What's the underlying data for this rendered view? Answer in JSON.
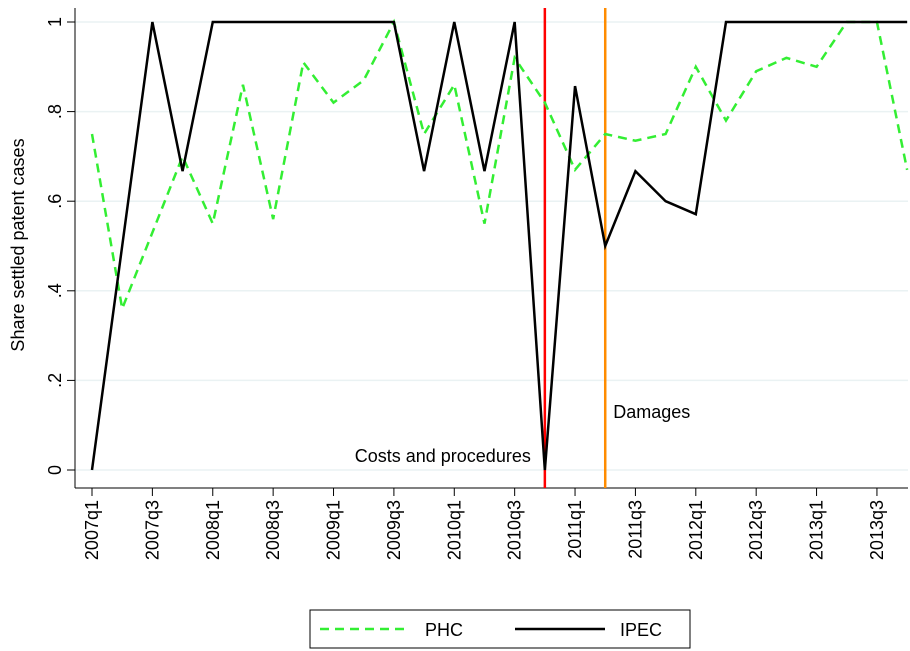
{
  "chart_data": {
    "type": "line",
    "y_label": "Share settled patent cases",
    "categories": [
      "2007q1",
      null,
      "2007q3",
      null,
      "2008q1",
      null,
      "2008q3",
      null,
      "2009q1",
      null,
      "2009q3",
      null,
      "2010q1",
      null,
      "2010q3",
      null,
      "2011q1",
      null,
      "2011q3",
      null,
      "2012q1",
      null,
      "2012q3",
      null,
      "2013q1",
      null,
      "2013q3",
      null
    ],
    "series": [
      {
        "name": "PHC",
        "color": "#33ee33",
        "dashed": true,
        "values": [
          0.75,
          0.36,
          0.53,
          0.7,
          0.55,
          0.86,
          0.56,
          0.91,
          0.82,
          0.87,
          1,
          0.75,
          0.86,
          0.55,
          0.92,
          0.82,
          0.67,
          0.75,
          0.735,
          0.75,
          0.9,
          0.78,
          0.89,
          0.92,
          0.9,
          1,
          1,
          0.67
        ]
      },
      {
        "name": "IPEC",
        "color": "#000000",
        "dashed": false,
        "values": [
          0,
          0.5,
          1,
          0.667,
          1,
          1,
          1,
          1,
          1,
          1,
          1,
          0.667,
          1,
          0.667,
          1,
          0,
          0.857,
          0.5,
          0.667,
          0.6,
          0.571,
          1,
          1,
          1,
          1,
          1,
          1,
          1
        ]
      }
    ],
    "ylim": [
      0,
      1
    ],
    "yticks": [
      0,
      {
        "value": 0.2,
        "label": ".2"
      },
      {
        "value": 0.4,
        "label": ".4"
      },
      {
        "value": 0.6,
        "label": ".6"
      },
      {
        "value": 0.8,
        "label": ".8"
      },
      1
    ],
    "grid": true,
    "vlines": [
      {
        "x": 15,
        "color": "#ff0000",
        "label": "Costs and procedures",
        "side": "left"
      },
      {
        "x": 17,
        "color": "#ff8c00",
        "label": "Damages",
        "side": "right"
      }
    ],
    "legend": "bottom"
  }
}
